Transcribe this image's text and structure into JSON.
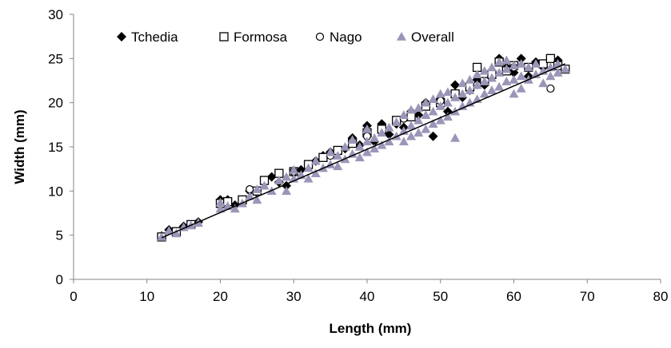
{
  "chart_data": {
    "type": "scatter",
    "title": "",
    "xlabel": "Length (mm)",
    "ylabel": "Width (mm)",
    "xlim": [
      0,
      80
    ],
    "ylim": [
      0,
      30
    ],
    "xticks": [
      0,
      10,
      20,
      30,
      40,
      50,
      60,
      70,
      80
    ],
    "yticks": [
      0,
      5,
      10,
      15,
      20,
      25,
      30
    ],
    "grid": false,
    "legend_position": "top-left",
    "series": [
      {
        "name": "Tchedia",
        "marker": "diamond",
        "color": "#000000",
        "points": [
          [
            12,
            4.9
          ],
          [
            13,
            5.6
          ],
          [
            15,
            6.0
          ],
          [
            17,
            6.5
          ],
          [
            20,
            9.0
          ],
          [
            21,
            9.0
          ],
          [
            22,
            8.4
          ],
          [
            24,
            10.0
          ],
          [
            25,
            9.8
          ],
          [
            27,
            11.6
          ],
          [
            28,
            11.0
          ],
          [
            29,
            10.6
          ],
          [
            30,
            12.0
          ],
          [
            31,
            12.4
          ],
          [
            33,
            13.4
          ],
          [
            34,
            14.0
          ],
          [
            35,
            14.4
          ],
          [
            37,
            14.8
          ],
          [
            38,
            16.0
          ],
          [
            39,
            15.2
          ],
          [
            40,
            17.4
          ],
          [
            41,
            15.6
          ],
          [
            42,
            17.6
          ],
          [
            43,
            16.4
          ],
          [
            44,
            17.6
          ],
          [
            45,
            17.2
          ],
          [
            46,
            19.0
          ],
          [
            47,
            18.6
          ],
          [
            48,
            20.0
          ],
          [
            49,
            16.2
          ],
          [
            50,
            20.4
          ],
          [
            51,
            19.0
          ],
          [
            52,
            22.0
          ],
          [
            53,
            20.6
          ],
          [
            54,
            21.4
          ],
          [
            55,
            22.6
          ],
          [
            56,
            22.0
          ],
          [
            57,
            23.6
          ],
          [
            58,
            25.0
          ],
          [
            59,
            24.0
          ],
          [
            60,
            23.4
          ],
          [
            61,
            25.0
          ],
          [
            62,
            23.0
          ],
          [
            63,
            24.6
          ],
          [
            64,
            24.0
          ],
          [
            66,
            24.8
          ]
        ]
      },
      {
        "name": "Formosa",
        "marker": "square",
        "color": "#000000",
        "points": [
          [
            12,
            4.8
          ],
          [
            14,
            5.4
          ],
          [
            16,
            6.2
          ],
          [
            20,
            8.6
          ],
          [
            21,
            8.8
          ],
          [
            23,
            9.0
          ],
          [
            25,
            10.0
          ],
          [
            26,
            11.2
          ],
          [
            28,
            12.0
          ],
          [
            30,
            12.2
          ],
          [
            32,
            13.0
          ],
          [
            34,
            13.8
          ],
          [
            36,
            14.6
          ],
          [
            38,
            15.4
          ],
          [
            40,
            16.6
          ],
          [
            42,
            17.0
          ],
          [
            44,
            18.0
          ],
          [
            46,
            18.4
          ],
          [
            48,
            19.6
          ],
          [
            50,
            20.0
          ],
          [
            52,
            21.0
          ],
          [
            54,
            21.8
          ],
          [
            55,
            24.0
          ],
          [
            56,
            22.4
          ],
          [
            57,
            23.2
          ],
          [
            58,
            24.6
          ],
          [
            59,
            23.6
          ],
          [
            60,
            24.2
          ],
          [
            62,
            24.0
          ],
          [
            64,
            24.4
          ],
          [
            65,
            25.0
          ],
          [
            66,
            24.2
          ],
          [
            67,
            23.8
          ]
        ]
      },
      {
        "name": "Nago",
        "marker": "circle",
        "color": "#000000",
        "points": [
          [
            24,
            10.2
          ],
          [
            30,
            12.2
          ],
          [
            35,
            14.0
          ],
          [
            40,
            16.2
          ],
          [
            45,
            18.2
          ],
          [
            50,
            20.2
          ],
          [
            55,
            22.0
          ],
          [
            60,
            24.0
          ],
          [
            65,
            21.6
          ]
        ]
      },
      {
        "name": "Overall",
        "marker": "triangle",
        "color": "#9c95b8",
        "points": [
          [
            12,
            4.8
          ],
          [
            13,
            5.5
          ],
          [
            14,
            5.2
          ],
          [
            15,
            5.9
          ],
          [
            16,
            6.1
          ],
          [
            17,
            6.4
          ],
          [
            20,
            8.0
          ],
          [
            20,
            8.7
          ],
          [
            21,
            8.3
          ],
          [
            22,
            8.0
          ],
          [
            23,
            8.6
          ],
          [
            24,
            9.4
          ],
          [
            25,
            9.0
          ],
          [
            25,
            10.2
          ],
          [
            26,
            10.6
          ],
          [
            27,
            10.0
          ],
          [
            28,
            11.2
          ],
          [
            29,
            10.0
          ],
          [
            29,
            11.6
          ],
          [
            30,
            11.4
          ],
          [
            30,
            12.4
          ],
          [
            31,
            11.8
          ],
          [
            32,
            12.6
          ],
          [
            32,
            11.4
          ],
          [
            33,
            12.0
          ],
          [
            33,
            13.4
          ],
          [
            34,
            12.6
          ],
          [
            35,
            13.0
          ],
          [
            35,
            14.4
          ],
          [
            36,
            14.0
          ],
          [
            36,
            12.8
          ],
          [
            37,
            15.0
          ],
          [
            37,
            13.6
          ],
          [
            38,
            14.2
          ],
          [
            38,
            15.8
          ],
          [
            39,
            15.0
          ],
          [
            39,
            13.8
          ],
          [
            40,
            15.6
          ],
          [
            40,
            14.4
          ],
          [
            40,
            17.0
          ],
          [
            41,
            16.0
          ],
          [
            41,
            14.8
          ],
          [
            42,
            16.6
          ],
          [
            42,
            15.2
          ],
          [
            43,
            17.2
          ],
          [
            43,
            15.6
          ],
          [
            44,
            16.2
          ],
          [
            44,
            17.8
          ],
          [
            45,
            16.8
          ],
          [
            45,
            18.6
          ],
          [
            45,
            15.6
          ],
          [
            46,
            17.4
          ],
          [
            46,
            19.2
          ],
          [
            46,
            16.2
          ],
          [
            47,
            18.0
          ],
          [
            47,
            19.4
          ],
          [
            47,
            16.6
          ],
          [
            48,
            18.6
          ],
          [
            48,
            17.0
          ],
          [
            48,
            20.0
          ],
          [
            49,
            19.0
          ],
          [
            49,
            17.6
          ],
          [
            49,
            20.4
          ],
          [
            50,
            19.6
          ],
          [
            50,
            18.0
          ],
          [
            50,
            21.0
          ],
          [
            51,
            20.0
          ],
          [
            51,
            18.4
          ],
          [
            51,
            21.2
          ],
          [
            52,
            20.6
          ],
          [
            52,
            16.0
          ],
          [
            52,
            19.0
          ],
          [
            53,
            21.0
          ],
          [
            53,
            19.6
          ],
          [
            53,
            22.2
          ],
          [
            54,
            21.4
          ],
          [
            54,
            20.0
          ],
          [
            54,
            22.6
          ],
          [
            55,
            22.0
          ],
          [
            55,
            20.4
          ],
          [
            55,
            23.2
          ],
          [
            56,
            22.4
          ],
          [
            56,
            21.0
          ],
          [
            56,
            23.6
          ],
          [
            57,
            22.8
          ],
          [
            57,
            21.4
          ],
          [
            57,
            24.0
          ],
          [
            58,
            23.4
          ],
          [
            58,
            21.8
          ],
          [
            58,
            24.6
          ],
          [
            59,
            23.8
          ],
          [
            59,
            22.4
          ],
          [
            59,
            24.8
          ],
          [
            60,
            24.2
          ],
          [
            60,
            22.6
          ],
          [
            60,
            21.0
          ],
          [
            61,
            24.4
          ],
          [
            61,
            23.0
          ],
          [
            61,
            21.6
          ],
          [
            62,
            24.0
          ],
          [
            62,
            22.6
          ],
          [
            63,
            24.4
          ],
          [
            63,
            23.2
          ],
          [
            64,
            23.6
          ],
          [
            64,
            22.2
          ],
          [
            65,
            24.0
          ],
          [
            65,
            23.0
          ],
          [
            66,
            24.4
          ],
          [
            66,
            23.4
          ],
          [
            67,
            23.8
          ]
        ]
      }
    ],
    "trendline": {
      "color": "#000000",
      "from": [
        12,
        4.7
      ],
      "to": [
        67,
        24.4
      ]
    }
  }
}
